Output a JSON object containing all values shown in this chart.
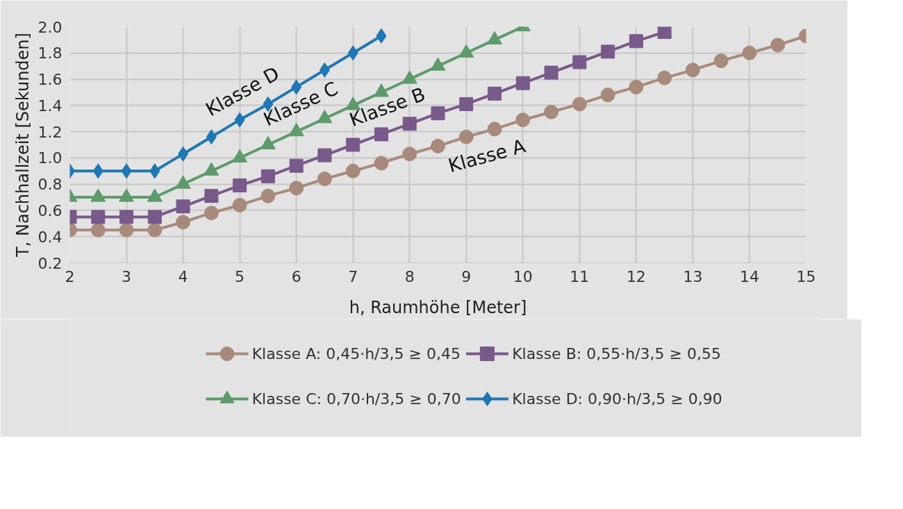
{
  "chart_data": {
    "type": "line",
    "xlabel": "h, Raumhöhe [Meter]",
    "ylabel": "T, Nachhallzeit [Sekunden]",
    "xlim": [
      2,
      15
    ],
    "xticks": [
      2,
      3,
      4,
      5,
      6,
      7,
      8,
      9,
      10,
      11,
      12,
      13,
      14,
      15
    ],
    "ylim": [
      0.2,
      2.0
    ],
    "yticks": [
      {
        "value": 0.2,
        "label": "0.2"
      },
      {
        "value": 0.4,
        "label": "0.4"
      },
      {
        "value": 0.6,
        "label": "0.6"
      },
      {
        "value": 0.8,
        "label": "0.8"
      },
      {
        "value": 1.0,
        "label": "1.0"
      },
      {
        "value": 1.2,
        "label": "1.2"
      },
      {
        "value": 1.4,
        "label": "1.4"
      },
      {
        "value": 1.6,
        "label": "1.6"
      },
      {
        "value": 1.8,
        "label": "1.8"
      },
      {
        "value": 2.0,
        "label": "2.0"
      }
    ],
    "grid": true,
    "legend": "bottom",
    "line_style": "solid",
    "series": [
      {
        "name": "Klasse A: 0,45·h/3,5 ≥ 0,45",
        "color": "#a88a7c",
        "marker": "circle",
        "x": [
          2,
          2.5,
          3,
          3.5,
          4,
          4.5,
          5,
          5.5,
          6,
          6.5,
          7,
          7.5,
          8,
          8.5,
          9,
          9.5,
          10,
          10.5,
          11,
          11.5,
          12,
          12.5,
          13,
          13.5,
          14,
          14.5,
          15
        ],
        "values": [
          0.45,
          0.45,
          0.45,
          0.45,
          0.51,
          0.58,
          0.64,
          0.71,
          0.77,
          0.84,
          0.9,
          0.96,
          1.03,
          1.09,
          1.16,
          1.22,
          1.29,
          1.35,
          1.41,
          1.48,
          1.54,
          1.61,
          1.67,
          1.74,
          1.8,
          1.86,
          1.93
        ]
      },
      {
        "name": "Klasse B: 0,55·h/3,5 ≥ 0,55",
        "color": "#785a8a",
        "marker": "square",
        "x": [
          2,
          2.5,
          3,
          3.5,
          4,
          4.5,
          5,
          5.5,
          6,
          6.5,
          7,
          7.5,
          8,
          8.5,
          9,
          9.5,
          10,
          10.5,
          11,
          11.5,
          12,
          12.5
        ],
        "values": [
          0.55,
          0.55,
          0.55,
          0.55,
          0.63,
          0.71,
          0.79,
          0.86,
          0.94,
          1.02,
          1.1,
          1.18,
          1.26,
          1.34,
          1.41,
          1.49,
          1.57,
          1.65,
          1.73,
          1.81,
          1.89,
          1.96
        ]
      },
      {
        "name": "Klasse C: 0,70·h/3,5 ≥ 0,70",
        "color": "#5e9a6c",
        "marker": "triangle",
        "x": [
          2,
          2.5,
          3,
          3.5,
          4,
          4.5,
          5,
          5.5,
          6,
          6.5,
          7,
          7.5,
          8,
          8.5,
          9,
          9.5,
          10
        ],
        "values": [
          0.7,
          0.7,
          0.7,
          0.7,
          0.8,
          0.9,
          1.0,
          1.1,
          1.2,
          1.3,
          1.4,
          1.5,
          1.6,
          1.7,
          1.8,
          1.9,
          2.0
        ]
      },
      {
        "name": "Klasse D: 0,90·h/3,5 ≥ 0,90",
        "color": "#1f77b4",
        "marker": "diamond",
        "x": [
          2,
          2.5,
          3,
          3.5,
          4,
          4.5,
          5,
          5.5,
          6,
          6.5,
          7,
          7.5
        ],
        "values": [
          0.9,
          0.9,
          0.9,
          0.9,
          1.03,
          1.16,
          1.29,
          1.41,
          1.54,
          1.67,
          1.8,
          1.93
        ]
      }
    ],
    "annotations": [
      "Klasse D",
      "Klasse C",
      "Klasse B",
      "Klasse A"
    ]
  }
}
